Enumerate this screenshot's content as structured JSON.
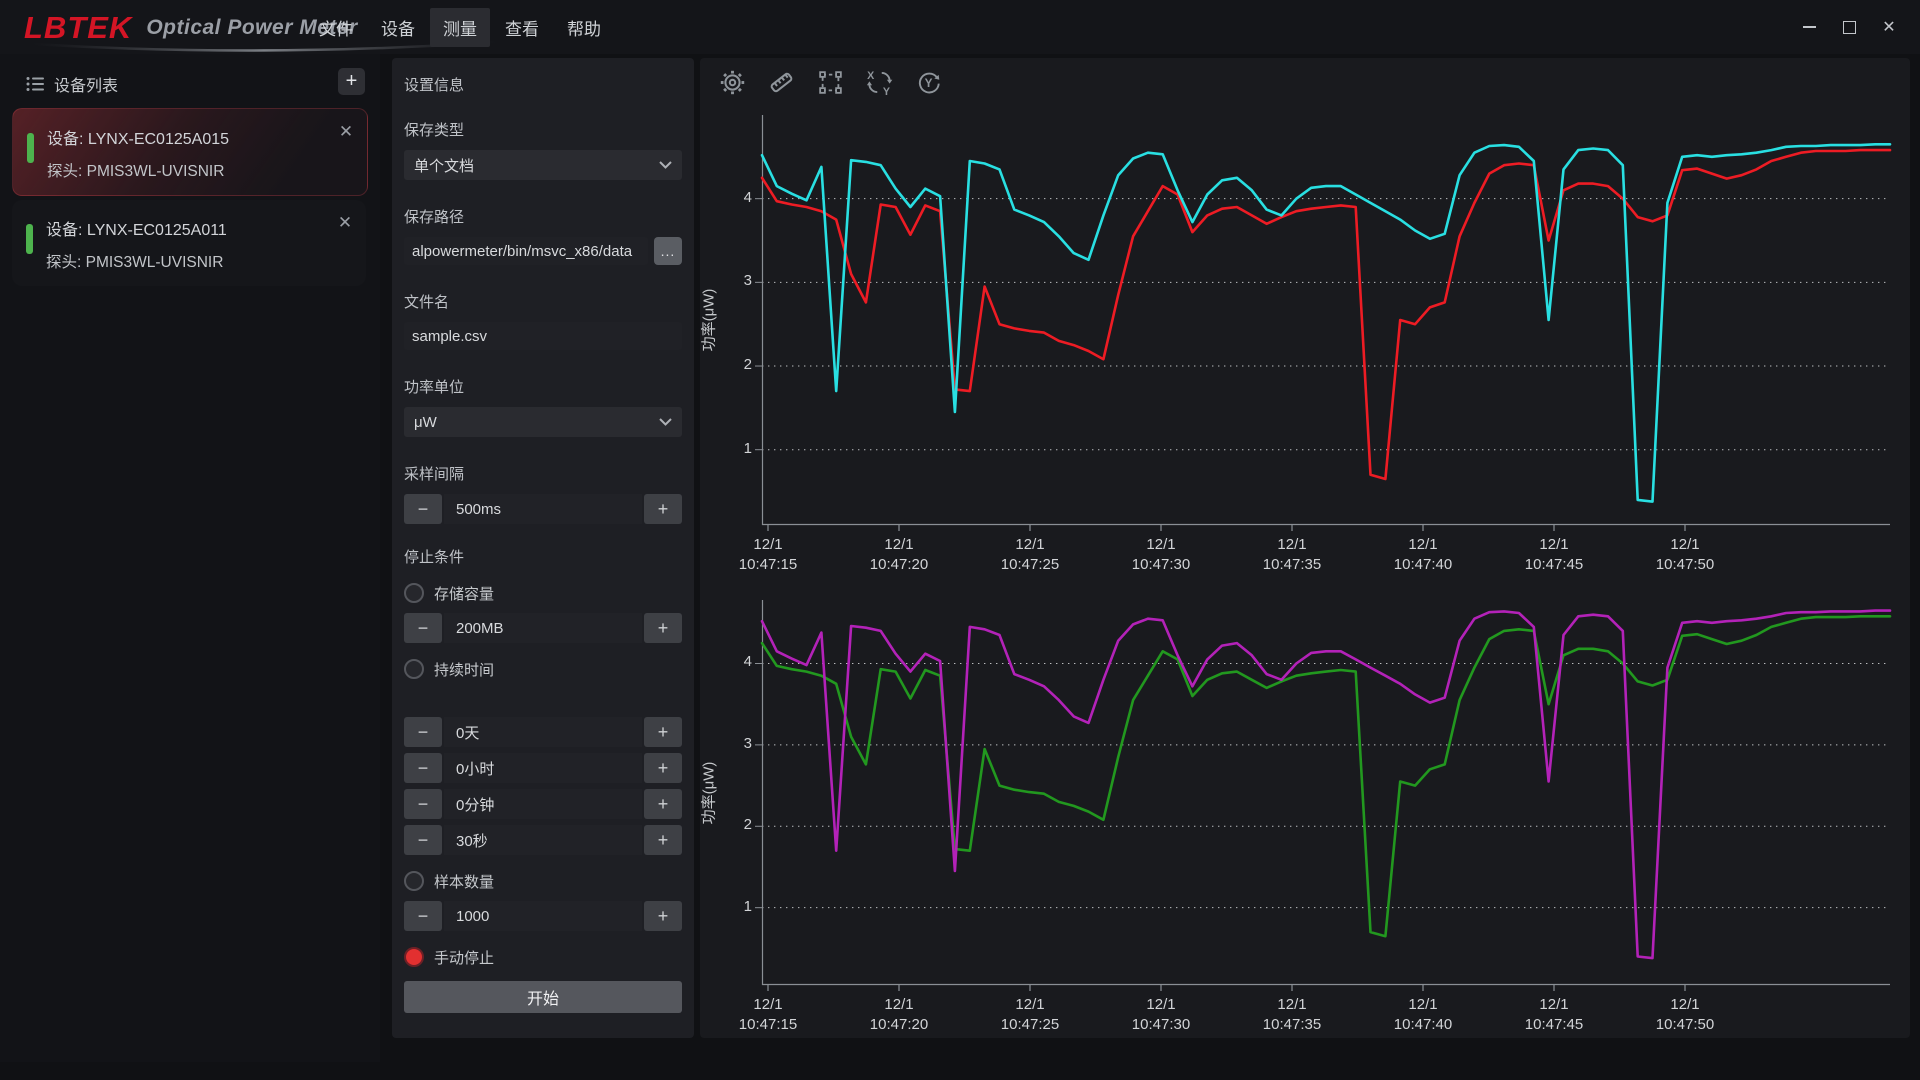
{
  "window": {
    "logo": "LBTEK",
    "logo_sub": "Optical Power Meter",
    "menu": [
      {
        "label": "文件"
      },
      {
        "label": "设备"
      },
      {
        "label": "测量",
        "active": true
      },
      {
        "label": "查看"
      },
      {
        "label": "帮助"
      }
    ],
    "controls": {
      "close_glyph": "✕"
    }
  },
  "sidebar": {
    "header": "设备列表",
    "add_button": "+",
    "close_glyph": "✕",
    "devices": [
      {
        "device": "设备: LYNX-EC0125A015",
        "probe": "探头: PMIS3WL-UVISNIR",
        "selected": true
      },
      {
        "device": "设备: LYNX-EC0125A011",
        "probe": "探头: PMIS3WL-UVISNIR",
        "selected": false
      }
    ]
  },
  "settings": {
    "title": "设置信息",
    "save_type_label": "保存类型",
    "save_type_value": "单个文档",
    "save_path_label": "保存路径",
    "save_path_value": "alpowermeter/bin/msvc_x86/data",
    "browse_button": "...",
    "file_name_label": "文件名",
    "file_name_value": "sample.csv",
    "power_unit_label": "功率单位",
    "power_unit_value": "μW",
    "interval_label": "采样间隔",
    "interval_value": "500ms",
    "stop_label": "停止条件",
    "storage_label": "存储容量",
    "storage_value": "200MB",
    "duration_label": "持续时间",
    "days_value": "0天",
    "hours_value": "0小时",
    "minutes_value": "0分钟",
    "seconds_value": "30秒",
    "samples_label": "样本数量",
    "samples_value": "1000",
    "manual_label": "手动停止",
    "start_button": "开始",
    "minus": "−",
    "plus": "+"
  },
  "chart_data": [
    {
      "type": "line",
      "title": "",
      "xlabel": "",
      "ylabel": "功率(μW)",
      "yticks": [
        1,
        2,
        3,
        4
      ],
      "ylim": [
        0.1,
        5.0
      ],
      "grid": "dotted",
      "x_ticks": [
        {
          "date": "12/1",
          "time": "10:47:15"
        },
        {
          "date": "12/1",
          "time": "10:47:20"
        },
        {
          "date": "12/1",
          "time": "10:47:25"
        },
        {
          "date": "12/1",
          "time": "10:47:30"
        },
        {
          "date": "12/1",
          "time": "10:47:35"
        },
        {
          "date": "12/1",
          "time": "10:47:40"
        },
        {
          "date": "12/1",
          "time": "10:47:45"
        },
        {
          "date": "12/1",
          "time": "10:47:50"
        }
      ],
      "series": [
        {
          "name": "device-2-red",
          "color": "#ed1c24",
          "values": [
            4.25,
            3.97,
            3.93,
            3.9,
            3.85,
            3.75,
            3.1,
            2.76,
            3.93,
            3.9,
            3.57,
            3.92,
            3.85,
            1.72,
            1.7,
            2.95,
            2.5,
            2.45,
            2.42,
            2.4,
            2.3,
            2.25,
            2.18,
            2.08,
            2.85,
            3.55,
            3.85,
            4.15,
            4.05,
            3.6,
            3.8,
            3.88,
            3.9,
            3.8,
            3.7,
            3.78,
            3.85,
            3.88,
            3.9,
            3.92,
            3.9,
            0.7,
            0.65,
            2.55,
            2.5,
            2.7,
            2.76,
            3.55,
            3.95,
            4.3,
            4.4,
            4.42,
            4.4,
            3.5,
            4.1,
            4.18,
            4.18,
            4.15,
            4.0,
            3.78,
            3.73,
            3.8,
            4.34,
            4.36,
            4.3,
            4.24,
            4.28,
            4.35,
            4.45,
            4.5,
            4.55,
            4.57,
            4.57,
            4.57,
            4.58,
            4.58,
            4.58
          ]
        },
        {
          "name": "device-1-cyan",
          "color": "#29dfe2",
          "values": [
            4.52,
            4.15,
            4.06,
            3.98,
            4.38,
            1.7,
            4.46,
            4.44,
            4.4,
            4.12,
            3.9,
            4.12,
            4.03,
            1.45,
            4.45,
            4.42,
            4.35,
            3.87,
            3.8,
            3.72,
            3.55,
            3.35,
            3.27,
            3.8,
            4.28,
            4.48,
            4.55,
            4.53,
            4.1,
            3.72,
            4.05,
            4.22,
            4.25,
            4.1,
            3.87,
            3.8,
            4.0,
            4.13,
            4.15,
            4.15,
            4.05,
            3.95,
            3.85,
            3.75,
            3.62,
            3.52,
            3.58,
            4.28,
            4.55,
            4.63,
            4.64,
            4.62,
            4.45,
            2.55,
            4.35,
            4.58,
            4.6,
            4.58,
            4.4,
            0.4,
            0.38,
            3.95,
            4.5,
            4.52,
            4.5,
            4.52,
            4.53,
            4.55,
            4.58,
            4.62,
            4.63,
            4.63,
            4.64,
            4.64,
            4.64,
            4.65,
            4.65
          ]
        }
      ]
    },
    {
      "type": "line",
      "title": "",
      "xlabel": "",
      "ylabel": "功率(μW)",
      "yticks": [
        1,
        2,
        3,
        4
      ],
      "ylim": [
        0.05,
        4.78
      ],
      "grid": "dotted",
      "x_ticks": [
        {
          "date": "12/1",
          "time": "10:47:15"
        },
        {
          "date": "12/1",
          "time": "10:47:20"
        },
        {
          "date": "12/1",
          "time": "10:47:25"
        },
        {
          "date": "12/1",
          "time": "10:47:30"
        },
        {
          "date": "12/1",
          "time": "10:47:35"
        },
        {
          "date": "12/1",
          "time": "10:47:40"
        },
        {
          "date": "12/1",
          "time": "10:47:45"
        },
        {
          "date": "12/1",
          "time": "10:47:50"
        }
      ],
      "series": [
        {
          "name": "device-2-green",
          "color": "#22981f",
          "values": [
            4.25,
            3.97,
            3.93,
            3.9,
            3.85,
            3.75,
            3.1,
            2.76,
            3.93,
            3.9,
            3.57,
            3.92,
            3.85,
            1.72,
            1.7,
            2.95,
            2.5,
            2.45,
            2.42,
            2.4,
            2.3,
            2.25,
            2.18,
            2.08,
            2.85,
            3.55,
            3.85,
            4.15,
            4.05,
            3.6,
            3.8,
            3.88,
            3.9,
            3.8,
            3.7,
            3.78,
            3.85,
            3.88,
            3.9,
            3.92,
            3.9,
            0.7,
            0.65,
            2.55,
            2.5,
            2.7,
            2.76,
            3.55,
            3.95,
            4.3,
            4.4,
            4.42,
            4.4,
            3.5,
            4.1,
            4.18,
            4.18,
            4.15,
            4.0,
            3.78,
            3.73,
            3.8,
            4.34,
            4.36,
            4.3,
            4.24,
            4.28,
            4.35,
            4.45,
            4.5,
            4.55,
            4.57,
            4.57,
            4.57,
            4.58,
            4.58,
            4.58
          ]
        },
        {
          "name": "device-1-magenta",
          "color": "#b322b8",
          "values": [
            4.52,
            4.15,
            4.06,
            3.98,
            4.38,
            1.7,
            4.46,
            4.44,
            4.4,
            4.12,
            3.9,
            4.12,
            4.03,
            1.45,
            4.45,
            4.42,
            4.35,
            3.87,
            3.8,
            3.72,
            3.55,
            3.35,
            3.27,
            3.8,
            4.28,
            4.48,
            4.55,
            4.53,
            4.1,
            3.72,
            4.05,
            4.22,
            4.25,
            4.1,
            3.87,
            3.8,
            4.0,
            4.13,
            4.15,
            4.15,
            4.05,
            3.95,
            3.85,
            3.75,
            3.62,
            3.52,
            3.58,
            4.28,
            4.55,
            4.63,
            4.64,
            4.62,
            4.45,
            2.55,
            4.35,
            4.58,
            4.6,
            4.58,
            4.4,
            0.4,
            0.38,
            3.95,
            4.5,
            4.52,
            4.5,
            4.52,
            4.53,
            4.55,
            4.58,
            4.62,
            4.63,
            4.63,
            4.64,
            4.64,
            4.64,
            4.65,
            4.65
          ]
        }
      ]
    }
  ]
}
